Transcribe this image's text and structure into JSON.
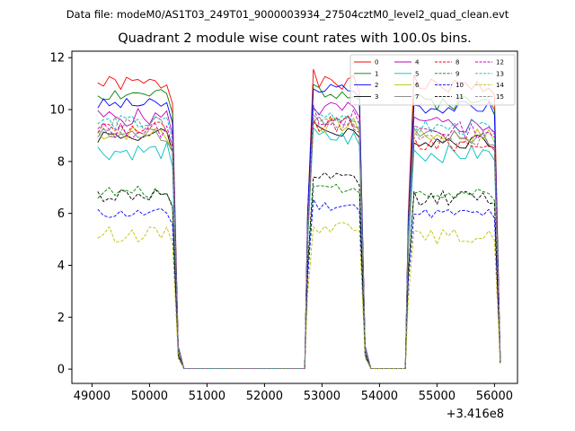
{
  "header": {
    "file_line": "Data file: modeM0/AS1T03_249T01_9000003934_27504cztM0_level2_quad_clean.evt"
  },
  "chart_data": {
    "type": "line",
    "title": "Quadrant 2 module wise count rates with 100.0s bins.",
    "xlabel": "",
    "ylabel": "",
    "x_offset_label": "+3.416e8",
    "xlim": [
      48650,
      56400
    ],
    "ylim": [
      -0.55,
      12.25
    ],
    "x_ticks": [
      49000,
      50000,
      51000,
      52000,
      53000,
      54000,
      55000,
      56000
    ],
    "x_tick_labels": [
      "49000",
      "50000",
      "51000",
      "52000",
      "53000",
      "54000",
      "55000",
      "56000"
    ],
    "y_ticks": [
      0,
      2,
      4,
      6,
      8,
      10,
      12
    ],
    "y_tick_labels": [
      "0",
      "2",
      "4",
      "6",
      "8",
      "10",
      "12"
    ],
    "legend_position": "top-right",
    "legend_columns": 4,
    "segments": [
      {
        "start": 49100,
        "n": 15
      },
      {
        "start": 52750,
        "n": 11
      },
      {
        "start": 54500,
        "n": 17
      }
    ],
    "zero_value": 0.02,
    "series": [
      {
        "name": "0",
        "color": "#ff0000",
        "dash": false,
        "levels": [
          11.0,
          11.0,
          10.9
        ],
        "amp": 0.3,
        "seed": 1
      },
      {
        "name": "1",
        "color": "#008000",
        "dash": false,
        "levels": [
          10.6,
          10.7,
          10.3
        ],
        "amp": 0.3,
        "seed": 2
      },
      {
        "name": "2",
        "color": "#0000ff",
        "dash": false,
        "levels": [
          10.2,
          10.8,
          10.1
        ],
        "amp": 0.25,
        "seed": 3
      },
      {
        "name": "3",
        "color": "#000000",
        "dash": false,
        "levels": [
          9.0,
          9.2,
          8.8
        ],
        "amp": 0.3,
        "seed": 4
      },
      {
        "name": "4",
        "color": "#bf00bf",
        "dash": false,
        "levels": [
          9.7,
          10.0,
          9.4
        ],
        "amp": 0.35,
        "seed": 5
      },
      {
        "name": "5",
        "color": "#00bfbf",
        "dash": false,
        "levels": [
          8.4,
          8.9,
          8.3
        ],
        "amp": 0.35,
        "seed": 6
      },
      {
        "name": "6",
        "color": "#bfbf00",
        "dash": false,
        "levels": [
          9.1,
          9.4,
          9.0
        ],
        "amp": 0.3,
        "seed": 7
      },
      {
        "name": "7",
        "color": "#808080",
        "dash": false,
        "levels": [
          9.0,
          9.6,
          8.9
        ],
        "amp": 0.35,
        "seed": 8
      },
      {
        "name": "8",
        "color": "#ff0000",
        "dash": true,
        "levels": [
          9.3,
          9.4,
          8.7
        ],
        "amp": 0.35,
        "seed": 9
      },
      {
        "name": "9",
        "color": "#008000",
        "dash": true,
        "levels": [
          6.8,
          7.0,
          6.7
        ],
        "amp": 0.25,
        "seed": 10
      },
      {
        "name": "10",
        "color": "#0000ff",
        "dash": true,
        "levels": [
          6.0,
          6.3,
          6.0
        ],
        "amp": 0.2,
        "seed": 11
      },
      {
        "name": "11",
        "color": "#000000",
        "dash": true,
        "levels": [
          6.7,
          7.3,
          6.6
        ],
        "amp": 0.3,
        "seed": 12
      },
      {
        "name": "12",
        "color": "#bf00bf",
        "dash": true,
        "levels": [
          9.2,
          9.7,
          9.2
        ],
        "amp": 0.35,
        "seed": 13
      },
      {
        "name": "13",
        "color": "#00bfbf",
        "dash": true,
        "levels": [
          9.5,
          9.8,
          9.3
        ],
        "amp": 0.3,
        "seed": 14
      },
      {
        "name": "14",
        "color": "#bfbf00",
        "dash": true,
        "levels": [
          5.2,
          5.5,
          5.1
        ],
        "amp": 0.3,
        "seed": 15
      },
      {
        "name": "15",
        "color": "#808080",
        "dash": true,
        "levels": [
          9.4,
          9.5,
          8.9
        ],
        "amp": 0.35,
        "seed": 16
      }
    ]
  }
}
